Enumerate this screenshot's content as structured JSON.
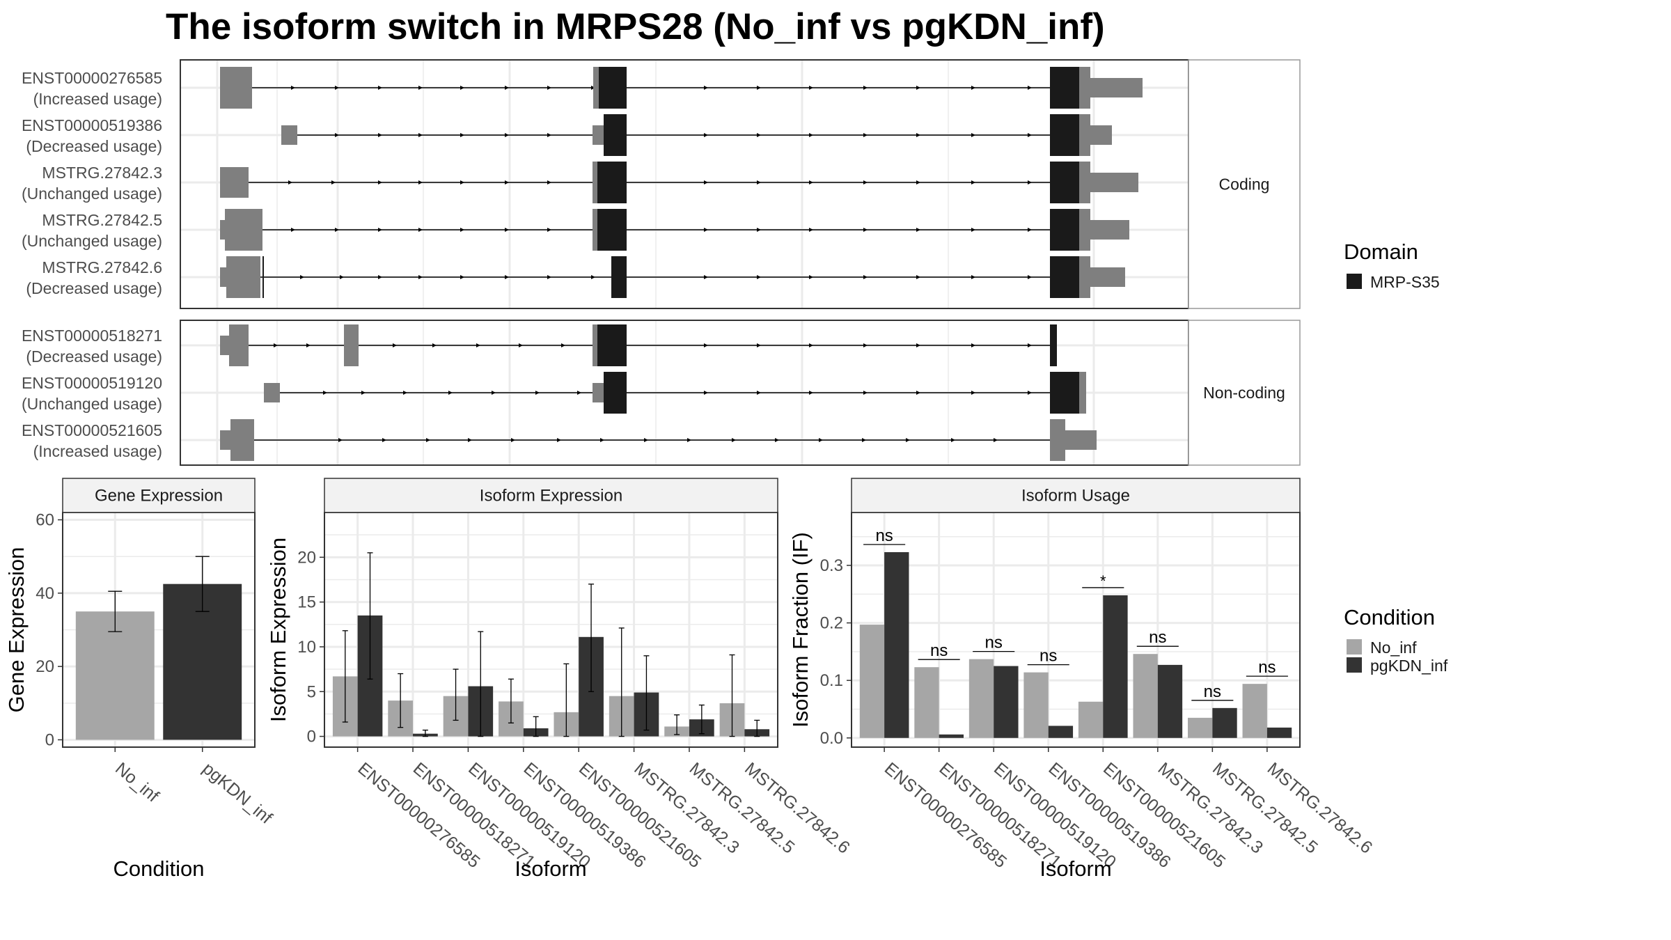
{
  "title": "The isoform switch in MRPS28 (No_inf vs pgKDN_inf)",
  "colors": {
    "utr": "#7f7f7f",
    "domain": "#1a1a1a",
    "no_inf": "#a6a6a6",
    "pgkdn_inf": "#333333",
    "grid": "#ebebeb",
    "strip": "#f2f2f2",
    "panel_border": "#333333",
    "strip_border": "#999999"
  },
  "transcript_plot": {
    "groups": [
      {
        "label": "Coding",
        "isoforms": [
          {
            "id": "ENST00000276585",
            "usage": "(Increased usage)"
          },
          {
            "id": "ENST00000519386",
            "usage": "(Decreased usage)"
          },
          {
            "id": "MSTRG.27842.3",
            "usage": "(Unchanged usage)"
          },
          {
            "id": "MSTRG.27842.5",
            "usage": "(Unchanged usage)"
          },
          {
            "id": "MSTRG.27842.6",
            "usage": "(Decreased usage)"
          }
        ]
      },
      {
        "label": "Non-coding",
        "isoforms": [
          {
            "id": "ENST00000518271",
            "usage": "(Decreased usage)"
          },
          {
            "id": "ENST00000519120",
            "usage": "(Unchanged usage)"
          },
          {
            "id": "ENST00000521605",
            "usage": "(Increased usage)"
          }
        ]
      }
    ],
    "legend": {
      "title": "Domain",
      "items": [
        {
          "label": "MRP-S35",
          "color": "#1a1a1a"
        }
      ]
    }
  },
  "chart_data": [
    {
      "type": "bar",
      "title": "Gene Expression",
      "xlabel": "Condition",
      "ylabel": "Gene Expression",
      "categories": [
        "No_inf",
        "pgKDN_inf"
      ],
      "values": [
        35,
        42.5
      ],
      "error_low": [
        29.5,
        35
      ],
      "error_high": [
        40.5,
        50
      ],
      "ylim": [
        -2,
        62
      ],
      "yticks": [
        0,
        20,
        40,
        60
      ],
      "tick_labels": [
        "0",
        "20",
        "40",
        "60"
      ]
    },
    {
      "type": "bar",
      "title": "Isoform Expression",
      "xlabel": "Isoform",
      "ylabel": "Isoform Expression",
      "categories": [
        "ENST00000276585",
        "ENST00000518271",
        "ENST00000519120",
        "ENST00000519386",
        "ENST00000521605",
        "MSTRG.27842.3",
        "MSTRG.27842.5",
        "MSTRG.27842.6"
      ],
      "series": [
        {
          "name": "No_inf",
          "values": [
            6.7,
            4.0,
            4.5,
            3.9,
            2.7,
            4.5,
            1.1,
            3.7
          ],
          "error_low": [
            1.6,
            1.0,
            1.8,
            1.5,
            0.0,
            0.0,
            0.2,
            0.0
          ],
          "error_high": [
            11.8,
            7.0,
            7.5,
            6.4,
            8.1,
            12.1,
            2.4,
            9.1
          ]
        },
        {
          "name": "pgKDN_inf",
          "values": [
            13.5,
            0.3,
            5.6,
            0.9,
            11.1,
            4.9,
            1.9,
            0.8
          ],
          "error_low": [
            6.4,
            0.0,
            0.0,
            0.0,
            5.0,
            0.7,
            0.3,
            0.0
          ],
          "error_high": [
            20.5,
            0.7,
            11.7,
            2.2,
            17.0,
            9.0,
            3.5,
            1.8
          ]
        }
      ],
      "ylim": [
        -1.2,
        25
      ],
      "yticks": [
        0,
        5,
        10,
        15,
        20
      ],
      "tick_labels": [
        "0",
        "5",
        "10",
        "15",
        "20"
      ]
    },
    {
      "type": "bar",
      "title": "Isoform Usage",
      "xlabel": "Isoform",
      "ylabel": "Isoform Fraction (IF)",
      "categories": [
        "ENST00000276585",
        "ENST00000518271",
        "ENST00000519120",
        "ENST00000519386",
        "ENST00000521605",
        "MSTRG.27842.3",
        "MSTRG.27842.5",
        "MSTRG.27842.6"
      ],
      "series": [
        {
          "name": "No_inf",
          "values": [
            0.197,
            0.123,
            0.137,
            0.114,
            0.063,
            0.146,
            0.035,
            0.094
          ]
        },
        {
          "name": "pgKDN_inf",
          "values": [
            0.323,
            0.006,
            0.125,
            0.021,
            0.248,
            0.127,
            0.052,
            0.018
          ]
        }
      ],
      "significance": [
        "ns",
        "ns",
        "ns",
        "ns",
        "*",
        "ns",
        "ns",
        "ns"
      ],
      "ylim": [
        -0.016,
        0.392
      ],
      "yticks": [
        0.0,
        0.1,
        0.2,
        0.3
      ],
      "tick_labels": [
        "0.0",
        "0.1",
        "0.2",
        "0.3"
      ]
    }
  ],
  "condition_legend": {
    "title": "Condition",
    "items": [
      {
        "label": "No_inf",
        "color": "#a6a6a6"
      },
      {
        "label": "pgKDN_inf",
        "color": "#333333"
      }
    ]
  }
}
